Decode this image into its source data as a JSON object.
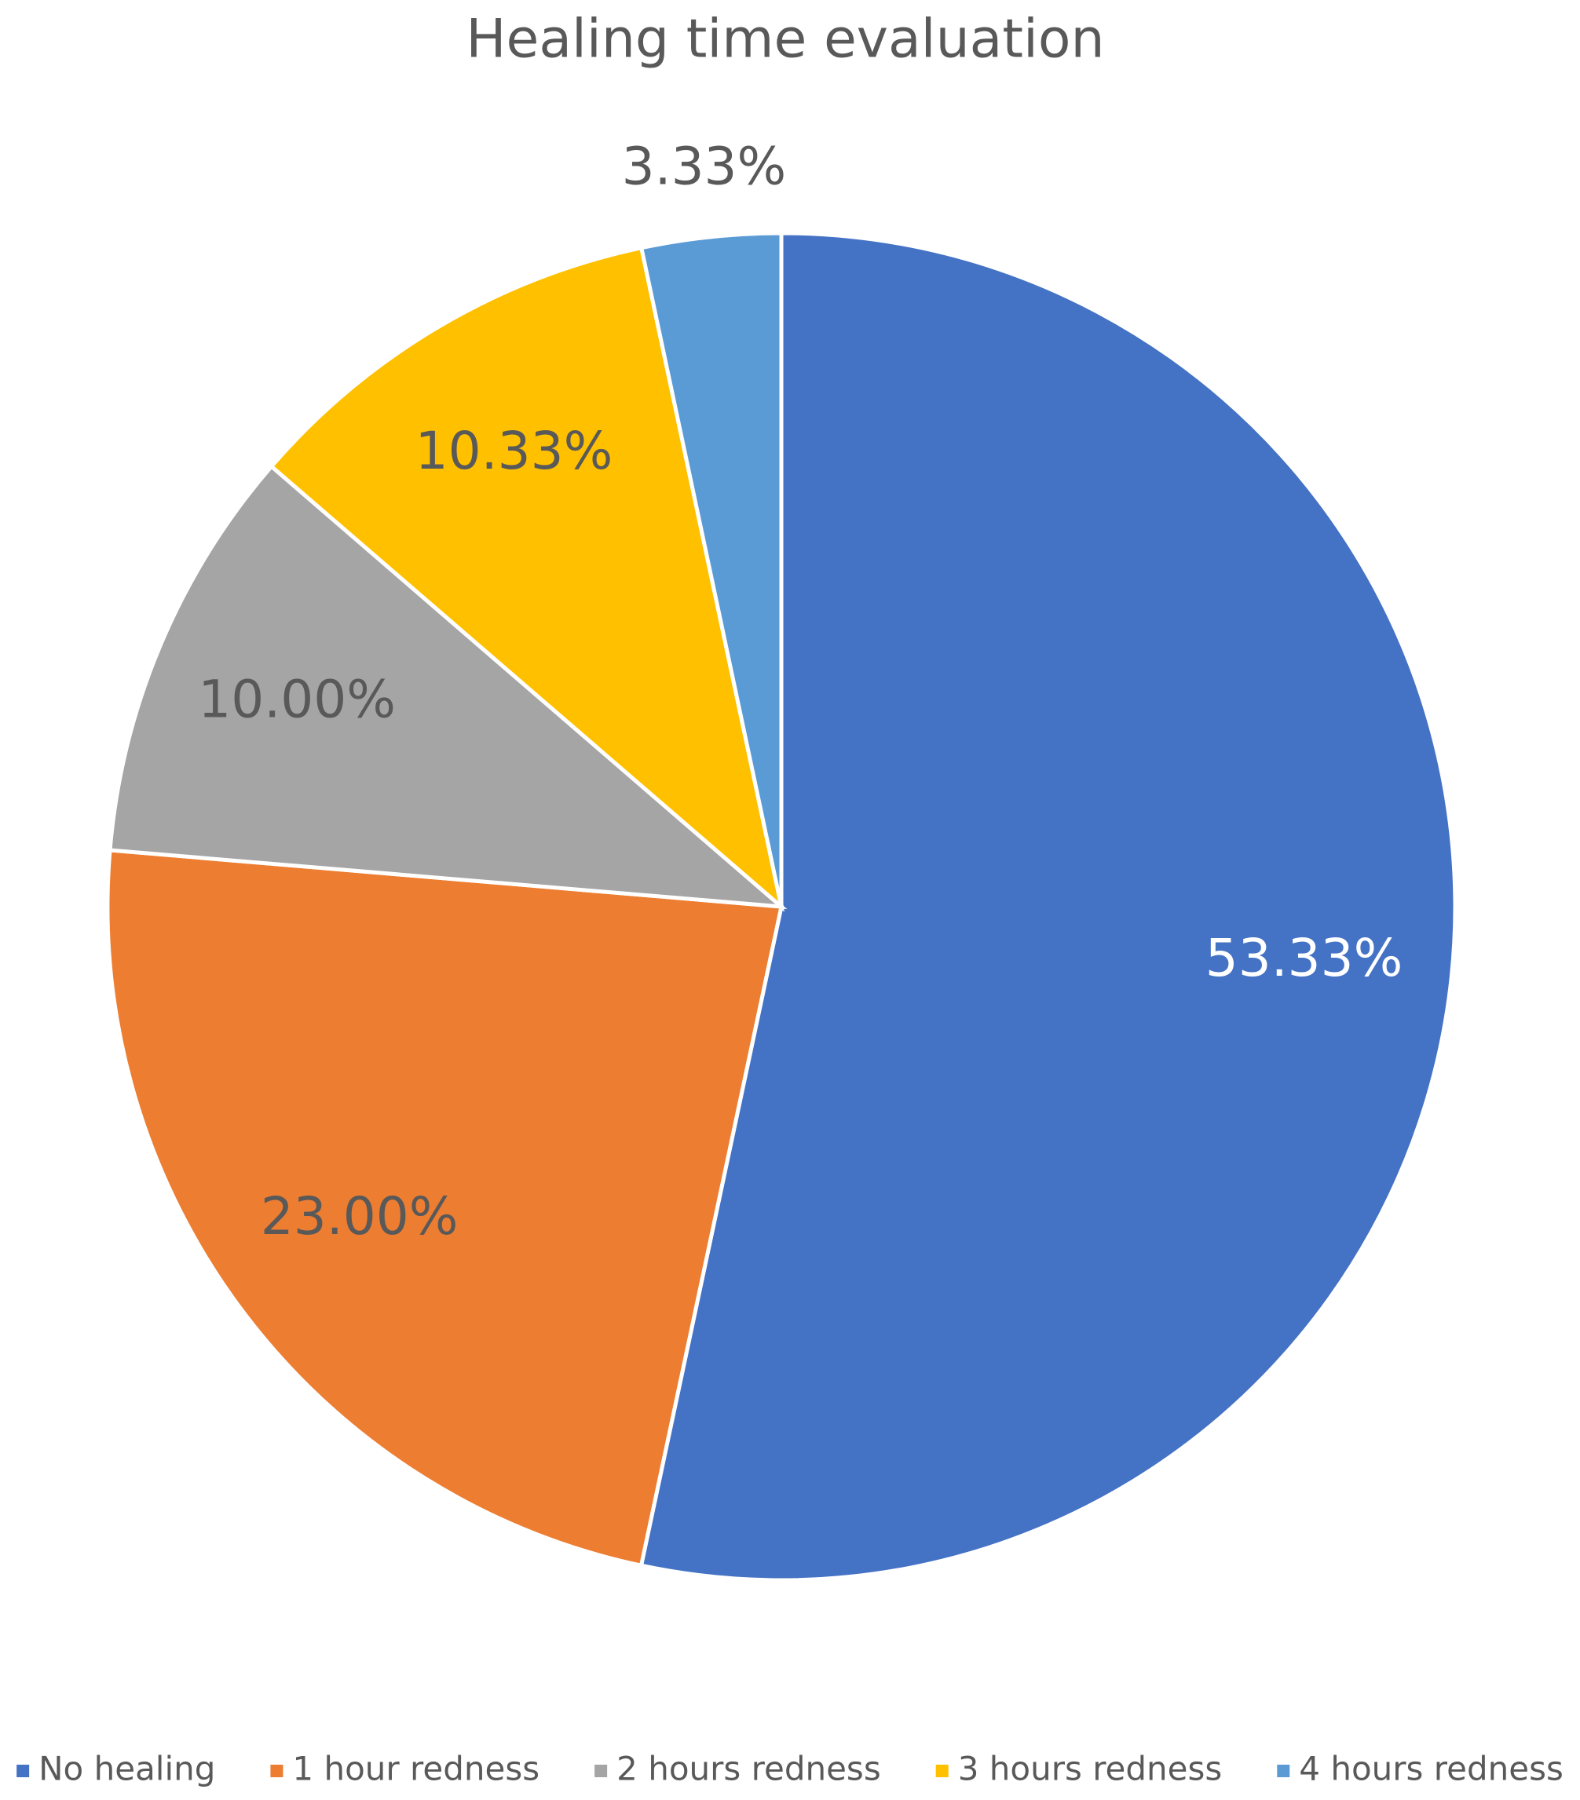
{
  "chart_data": {
    "type": "pie",
    "title": "Healing time evaluation",
    "categories": [
      "No healing",
      "1 hour redness",
      "2 hours redness",
      "3 hours redness",
      "4 hours redness"
    ],
    "values": [
      53.33,
      23.0,
      10.0,
      10.33,
      3.33
    ],
    "value_labels": [
      "53.33%",
      "23.00%",
      "10.00%",
      "10.33%",
      "3.33%"
    ],
    "colors": [
      "#4472c4",
      "#ed7d31",
      "#a5a5a5",
      "#ffc000",
      "#5b9bd5"
    ],
    "legend": "bottom"
  }
}
